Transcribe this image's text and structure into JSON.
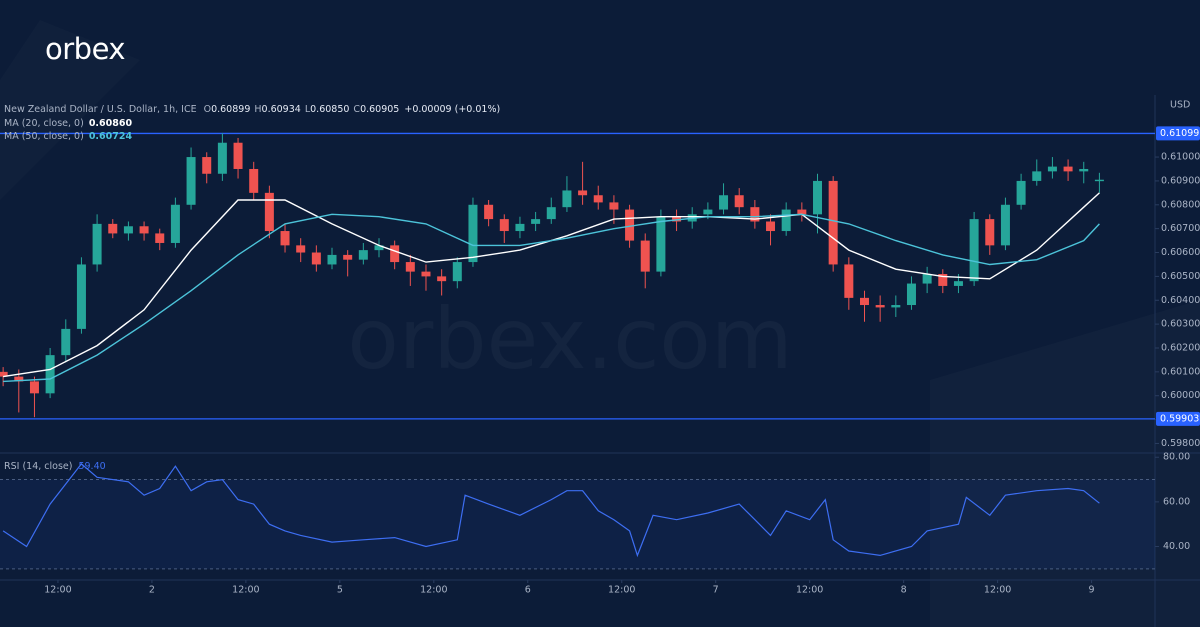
{
  "logo": "orbex",
  "watermark": "orbex.com",
  "chart_data": {
    "type": "candlestick",
    "title": "New Zealand Dollar / U.S. Dollar, 1h, ICE",
    "quote": [
      {
        "label": "O",
        "text": "0.60899"
      },
      {
        "label": "H",
        "text": "0.60934"
      },
      {
        "label": "L",
        "text": "0.60850"
      },
      {
        "label": "C",
        "text": "0.60905"
      }
    ],
    "change": "+0.00009 (+0.01%)",
    "y_axis_label": "USD",
    "up_color": "#26a69a",
    "down_color": "#ef5350",
    "x": [
      -7,
      -5,
      -3,
      -1,
      1,
      3,
      5,
      7,
      9,
      11,
      13,
      15,
      17,
      19,
      21,
      23,
      25,
      27,
      29,
      31,
      33,
      35,
      37,
      39,
      41,
      43,
      45,
      47,
      49,
      51,
      53,
      55,
      57,
      59,
      61,
      63,
      65,
      67,
      69,
      71,
      73,
      75,
      77,
      79,
      81,
      83,
      85,
      87,
      89,
      91,
      93,
      95,
      97,
      99,
      101,
      103,
      105,
      107,
      109,
      111,
      113,
      115,
      117,
      119,
      121,
      123,
      125,
      127,
      129,
      131,
      133
    ],
    "open": [
      0.601,
      0.6008,
      0.6006,
      0.6001,
      0.6017,
      0.6028,
      0.6055,
      0.6072,
      0.6068,
      0.6071,
      0.6068,
      0.6064,
      0.608,
      0.61,
      0.6093,
      0.6106,
      0.6095,
      0.6085,
      0.6069,
      0.6063,
      0.606,
      0.6055,
      0.6059,
      0.6057,
      0.6061,
      0.6063,
      0.6056,
      0.6052,
      0.605,
      0.6048,
      0.6056,
      0.608,
      0.6074,
      0.6069,
      0.6072,
      0.6074,
      0.6079,
      0.6086,
      0.6084,
      0.6081,
      0.6078,
      0.6065,
      0.6052,
      0.6075,
      0.6073,
      0.6076,
      0.6078,
      0.6084,
      0.6079,
      0.6073,
      0.6069,
      0.6078,
      0.6076,
      0.609,
      0.6055,
      0.6041,
      0.6038,
      0.6037,
      0.6038,
      0.6047,
      0.6051,
      0.6046,
      0.6048,
      0.6074,
      0.6063,
      0.608,
      0.609,
      0.6094,
      0.6096,
      0.6094,
      0.60899
    ],
    "high": [
      0.6012,
      0.6011,
      0.6008,
      0.602,
      0.6032,
      0.6058,
      0.6076,
      0.6074,
      0.6073,
      0.6073,
      0.607,
      0.6083,
      0.6104,
      0.6102,
      0.611,
      0.6108,
      0.6098,
      0.6088,
      0.6072,
      0.6066,
      0.6063,
      0.6062,
      0.6061,
      0.6064,
      0.6066,
      0.6065,
      0.6059,
      0.6055,
      0.6053,
      0.6058,
      0.6083,
      0.6082,
      0.6076,
      0.6075,
      0.6077,
      0.6083,
      0.6092,
      0.6098,
      0.6088,
      0.6084,
      0.608,
      0.6068,
      0.6078,
      0.6078,
      0.6079,
      0.6081,
      0.6089,
      0.6087,
      0.6082,
      0.6076,
      0.6081,
      0.6081,
      0.6093,
      0.6092,
      0.6058,
      0.6044,
      0.6042,
      0.6042,
      0.605,
      0.6054,
      0.6053,
      0.6051,
      0.6077,
      0.6076,
      0.6083,
      0.6093,
      0.6099,
      0.61,
      0.6099,
      0.6098,
      0.60934
    ],
    "low": [
      0.6004,
      0.5993,
      0.5991,
      0.5999,
      0.6014,
      0.6026,
      0.6052,
      0.6066,
      0.6065,
      0.6065,
      0.6061,
      0.6062,
      0.6078,
      0.6089,
      0.609,
      0.6091,
      0.6082,
      0.6066,
      0.606,
      0.6056,
      0.6052,
      0.6053,
      0.605,
      0.6055,
      0.6058,
      0.6053,
      0.6046,
      0.6044,
      0.6042,
      0.6045,
      0.6054,
      0.6071,
      0.6064,
      0.6066,
      0.6069,
      0.6072,
      0.6077,
      0.608,
      0.6078,
      0.6072,
      0.6062,
      0.6045,
      0.605,
      0.6069,
      0.607,
      0.6074,
      0.6076,
      0.6076,
      0.607,
      0.6063,
      0.6067,
      0.6073,
      0.6068,
      0.6052,
      0.6036,
      0.6031,
      0.6031,
      0.6033,
      0.6036,
      0.6043,
      0.6043,
      0.6043,
      0.6046,
      0.6059,
      0.6061,
      0.6078,
      0.6088,
      0.6091,
      0.609,
      0.6089,
      0.6085
    ],
    "close": [
      0.6008,
      0.6006,
      0.6001,
      0.6017,
      0.6028,
      0.6055,
      0.6072,
      0.6068,
      0.6071,
      0.6068,
      0.6064,
      0.608,
      0.61,
      0.6093,
      0.6106,
      0.6095,
      0.6085,
      0.6069,
      0.6063,
      0.606,
      0.6055,
      0.6059,
      0.6057,
      0.6061,
      0.6063,
      0.6056,
      0.6052,
      0.605,
      0.6048,
      0.6056,
      0.608,
      0.6074,
      0.6069,
      0.6072,
      0.6074,
      0.6079,
      0.6086,
      0.6084,
      0.6081,
      0.6078,
      0.6065,
      0.6052,
      0.6075,
      0.6073,
      0.6076,
      0.6078,
      0.6084,
      0.6079,
      0.6073,
      0.6069,
      0.6078,
      0.6076,
      0.609,
      0.6055,
      0.6041,
      0.6038,
      0.6037,
      0.6038,
      0.6047,
      0.6051,
      0.6046,
      0.6048,
      0.6074,
      0.6063,
      0.608,
      0.609,
      0.6094,
      0.6096,
      0.6094,
      0.6095,
      0.60905
    ],
    "series": [
      {
        "name": "MA (20, close, 0)",
        "value_label": "0.60860",
        "color": "#ffffff",
        "x": [
          -7,
          -1,
          5,
          11,
          17,
          23,
          29,
          35,
          41,
          47,
          53,
          59,
          65,
          71,
          77,
          83,
          89,
          95,
          101,
          107,
          113,
          119,
          125,
          131,
          133
        ],
        "values": [
          0.6008,
          0.6011,
          0.6021,
          0.6036,
          0.6061,
          0.6082,
          0.6082,
          0.6072,
          0.6063,
          0.6056,
          0.6058,
          0.6061,
          0.6067,
          0.6074,
          0.6075,
          0.6075,
          0.6074,
          0.6076,
          0.6061,
          0.6053,
          0.605,
          0.6049,
          0.6061,
          0.6079,
          0.6085
        ]
      },
      {
        "name": "MA (50, close, 0)",
        "value_label": "0.60724",
        "color": "#4cc3d9",
        "x": [
          -7,
          -1,
          5,
          11,
          17,
          23,
          29,
          35,
          41,
          47,
          53,
          59,
          65,
          71,
          77,
          83,
          89,
          95,
          101,
          107,
          113,
          119,
          125,
          131,
          133
        ],
        "values": [
          0.6006,
          0.6007,
          0.6017,
          0.603,
          0.6044,
          0.6059,
          0.6072,
          0.6076,
          0.6075,
          0.6072,
          0.6063,
          0.6063,
          0.6066,
          0.607,
          0.6073,
          0.6075,
          0.6075,
          0.6076,
          0.6072,
          0.6065,
          0.6059,
          0.6055,
          0.6057,
          0.6065,
          0.6072
        ]
      }
    ],
    "levels": [
      0.61099,
      0.59903
    ],
    "level_color": "#2962ff",
    "xlim": [
      -7.4,
      140.1
    ],
    "xticks": [
      {
        "value": 0,
        "label": "12:00"
      },
      {
        "value": 12,
        "label": "2"
      },
      {
        "value": 24,
        "label": "12:00"
      },
      {
        "value": 36,
        "label": "5"
      },
      {
        "value": 48,
        "label": "12:00"
      },
      {
        "value": 60,
        "label": "6"
      },
      {
        "value": 72,
        "label": "12:00"
      },
      {
        "value": 84,
        "label": "7"
      },
      {
        "value": 96,
        "label": "12:00"
      },
      {
        "value": 108,
        "label": "8"
      },
      {
        "value": 120,
        "label": "12:00"
      },
      {
        "value": 132,
        "label": "9"
      }
    ],
    "ylim": [
      0.5976,
      0.6126
    ],
    "yticks": [
      {
        "value": 0.598,
        "label": "0.59800"
      },
      {
        "value": 0.599,
        "label": "0.59900"
      },
      {
        "value": 0.6,
        "label": "0.60000"
      },
      {
        "value": 0.601,
        "label": "0.60100"
      },
      {
        "value": 0.602,
        "label": "0.60200"
      },
      {
        "value": 0.603,
        "label": "0.60300"
      },
      {
        "value": 0.604,
        "label": "0.60400"
      },
      {
        "value": 0.605,
        "label": "0.60500"
      },
      {
        "value": 0.606,
        "label": "0.60600"
      },
      {
        "value": 0.607,
        "label": "0.60700"
      },
      {
        "value": 0.608,
        "label": "0.60800"
      },
      {
        "value": 0.609,
        "label": "0.60900"
      },
      {
        "value": 0.61,
        "label": "0.61000"
      }
    ],
    "indicator": {
      "type": "line",
      "name": "RSI (14, close)",
      "value_label": "59.40",
      "color": "#3d6ef2",
      "x": [
        -7,
        -4,
        -1,
        3,
        5,
        9,
        11,
        13,
        15,
        17,
        19,
        21,
        23,
        25,
        27,
        29,
        31,
        35,
        39,
        43,
        47,
        51,
        52,
        55,
        59,
        63,
        65,
        67,
        69,
        71,
        73,
        74,
        76,
        79,
        83,
        87,
        89,
        91,
        93,
        96,
        98,
        99,
        101,
        103,
        105,
        109,
        111,
        115,
        116,
        119,
        121,
        125,
        129,
        131,
        133
      ],
      "values": [
        47,
        40,
        59,
        77,
        71,
        69,
        63,
        66,
        76,
        65,
        69,
        70,
        61,
        59,
        50,
        47,
        45,
        42,
        43,
        44,
        40,
        43,
        63,
        59,
        54,
        61,
        65,
        65,
        56,
        52,
        47,
        36,
        54,
        52,
        55,
        59,
        52,
        45,
        56,
        52,
        61,
        43,
        38,
        37,
        36,
        40,
        47,
        50,
        62,
        54,
        63,
        65,
        66,
        65,
        59.4
      ],
      "ylim": [
        25,
        81
      ],
      "yticks": [
        {
          "value": 40,
          "label": "40.00"
        },
        {
          "value": 60,
          "label": "60.00"
        },
        {
          "value": 80,
          "label": "80.00"
        }
      ],
      "bands": [
        30,
        70
      ]
    }
  }
}
